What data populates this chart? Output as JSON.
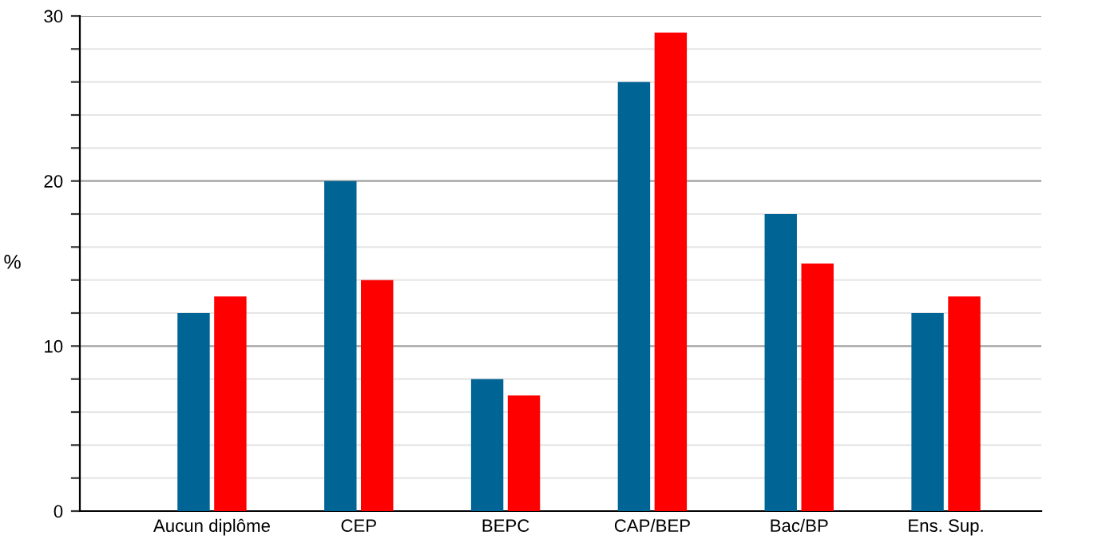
{
  "chart_data": {
    "type": "bar",
    "ylabel": "%",
    "categories": [
      "Aucun diplôme",
      "CEP",
      "BEPC",
      "CAP/BEP",
      "Bac/BP",
      "Ens. Sup."
    ],
    "series": [
      {
        "color": "#006494",
        "values": [
          12,
          20,
          8,
          26,
          18,
          12
        ]
      },
      {
        "color": "#ff0000",
        "values": [
          13,
          14,
          7,
          29,
          15,
          13
        ]
      }
    ],
    "ylim": [
      0,
      30
    ],
    "yticks": [
      0,
      {
        "value": 2,
        "label": null
      },
      {
        "value": 4,
        "label": null
      },
      {
        "value": 6,
        "label": null
      },
      {
        "value": 8,
        "label": null
      },
      10,
      {
        "value": 12,
        "label": null
      },
      {
        "value": 14,
        "label": null
      },
      {
        "value": 16,
        "label": null
      },
      {
        "value": 18,
        "label": null
      },
      20,
      {
        "value": 22,
        "label": null
      },
      {
        "value": 24,
        "label": null
      },
      {
        "value": 26,
        "label": null
      },
      {
        "value": 28,
        "label": null
      },
      30
    ],
    "grid": "y"
  }
}
